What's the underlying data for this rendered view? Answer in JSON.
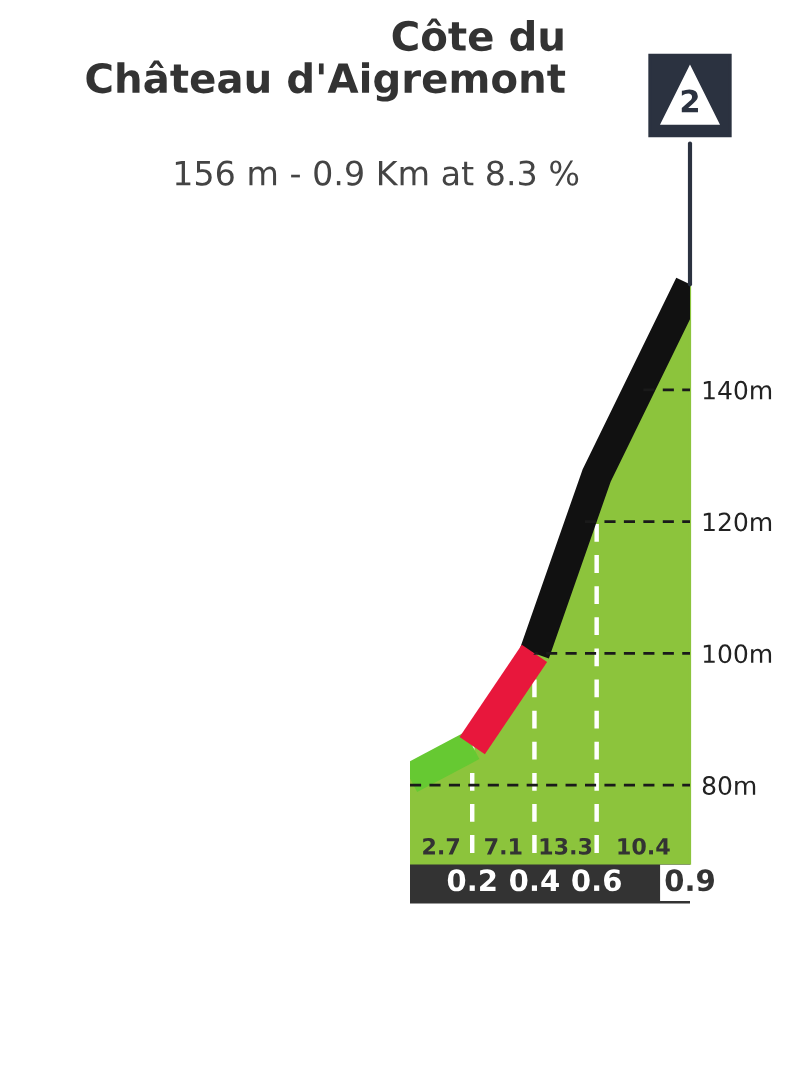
{
  "chart_data": {
    "type": "area",
    "title": "Côte du\nChâteau d'Aigremont",
    "subtitle": "156 m - 0.9 Km at 8.3 %",
    "x": [
      0,
      0.2,
      0.4,
      0.6,
      0.9
    ],
    "series": [
      {
        "color": "#8cc43c",
        "colors": [
          "#66c932",
          "#66c932",
          null,
          "#111111",
          "#111111"
        ],
        "values": [
          81,
          86,
          100,
          127,
          156
        ]
      },
      {
        "type": "line",
        "color": "#e8173c",
        "x": [
          0.2,
          0.4
        ],
        "values": [
          86,
          100
        ]
      }
    ],
    "xlim": [
      0,
      0.9
    ],
    "xticks": [
      0.2,
      0.4,
      0.6,
      0.9
    ],
    "ylim": [
      65,
      160
    ],
    "yticks": [
      {
        "value": 80,
        "label": "80m"
      },
      {
        "value": 100,
        "label": "100m"
      },
      {
        "value": 120,
        "label": "120m"
      },
      {
        "value": 140,
        "label": "140m"
      }
    ],
    "grid": "y",
    "ref_lines": [
      {
        "axis": "x",
        "value": 0.2,
        "color": "#ffffff",
        "line_style": "dashed"
      },
      {
        "axis": "x",
        "value": 0.4,
        "color": "#ffffff",
        "line_style": "dashed"
      },
      {
        "axis": "x",
        "value": 0.6,
        "color": "#ffffff",
        "line_style": "dashed"
      }
    ],
    "annotations": [
      {
        "text": "2",
        "x": 0.9,
        "y": 156
      },
      "2.7",
      "7.1",
      "13.3",
      "10.4"
    ]
  }
}
